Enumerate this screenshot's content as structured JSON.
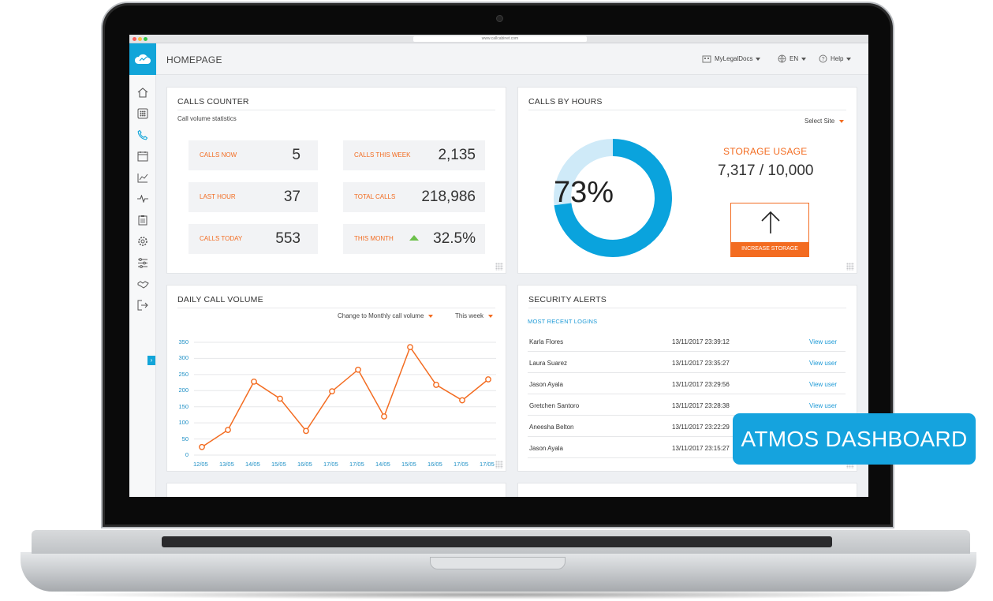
{
  "browser": {
    "url": "www.callcabinet.com"
  },
  "header": {
    "title": "HOMEPAGE",
    "account": "MyLegalDocs",
    "language": "EN",
    "help": "Help"
  },
  "sidebar": {
    "icons": [
      "home-icon",
      "dialpad-icon",
      "phone-icon",
      "calendar-icon",
      "line-chart-icon",
      "pulse-icon",
      "clipboard-icon",
      "gear-icon",
      "sliders-icon",
      "handshake-icon",
      "logout-icon"
    ],
    "expand_glyph": "›"
  },
  "calls_counter": {
    "title": "CALLS COUNTER",
    "subtitle": "Call volume statistics",
    "stats": [
      {
        "label": "CALLS NOW",
        "value": "5"
      },
      {
        "label": "CALLS THIS WEEK",
        "value": "2,135"
      },
      {
        "label": "LAST HOUR",
        "value": "37"
      },
      {
        "label": "TOTAL CALLS",
        "value": "218,986"
      },
      {
        "label": "CALLS TODAY",
        "value": "553"
      },
      {
        "label": "THIS MONTH",
        "value": "32.5%"
      }
    ]
  },
  "calls_by_hours": {
    "title": "CALLS BY HOURS",
    "select_site": "Select Site",
    "percent": 73,
    "percent_label": "73%",
    "storage_label": "STORAGE USAGE",
    "storage_value": "7,317 / 10,000",
    "increase_button": "INCREASE STORAGE",
    "colors": {
      "primary": "#0aa3dd",
      "secondary": "#cfeaf8",
      "accent": "#f36c21"
    }
  },
  "daily_volume": {
    "title": "DAILY CALL VOLUME",
    "change_link": "Change to Monthly call volume",
    "period": "This week"
  },
  "chart_data": {
    "type": "line",
    "x": [
      "12/05",
      "13/05",
      "14/05",
      "15/05",
      "16/05",
      "17/05",
      "17/05",
      "14/05",
      "15/05",
      "16/05",
      "17/05",
      "17/05"
    ],
    "values": [
      25,
      78,
      228,
      175,
      75,
      198,
      265,
      120,
      335,
      218,
      170,
      235
    ],
    "yticks": [
      0,
      50,
      100,
      150,
      200,
      250,
      300,
      350
    ],
    "ylim": [
      0,
      350
    ],
    "grid": true,
    "color": "#f36c21"
  },
  "security_alerts": {
    "title": "SECURITY ALERTS",
    "subtitle": "MOST RECENT LOGINS",
    "rows": [
      {
        "name": "Karla Flores",
        "time": "13/11/2017 23:39:12",
        "action": "View user"
      },
      {
        "name": "Laura Suarez",
        "time": "13/11/2017 23:35:27",
        "action": "View user"
      },
      {
        "name": "Jason Ayala",
        "time": "13/11/2017 23:29:56",
        "action": "View user"
      },
      {
        "name": "Gretchen Santoro",
        "time": "13/11/2017 23:28:38",
        "action": "View user"
      },
      {
        "name": "Aneesha Belton",
        "time": "13/11/2017 23:22:29",
        "action": ""
      },
      {
        "name": "Jason Ayala",
        "time": "13/11/2017 23:15:27",
        "action": ""
      }
    ]
  },
  "badge": {
    "text": "ATMOS DASHBOARD"
  }
}
